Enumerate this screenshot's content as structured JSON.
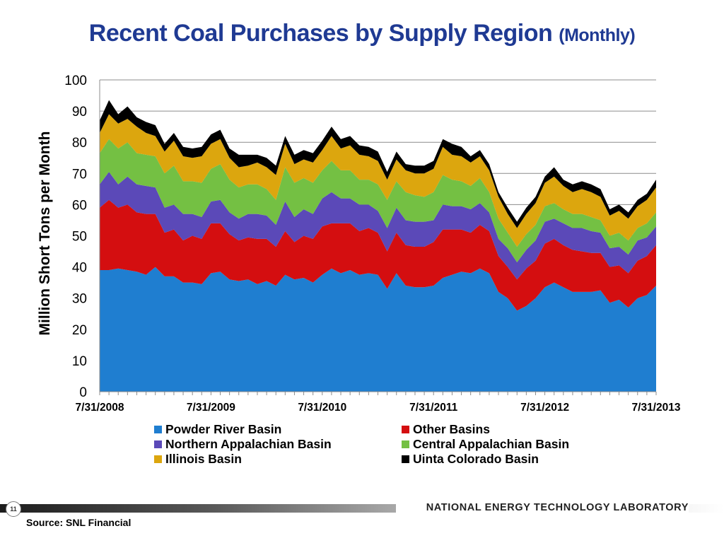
{
  "title": {
    "main": "Recent Coal Purchases by Supply Region",
    "sub": "(Monthly)"
  },
  "page_number": "11",
  "footer_org": "NATIONAL ENERGY TECHNOLOGY LABORATORY",
  "source": "Source: SNL Financial",
  "chart_data": {
    "type": "area",
    "stacked": true,
    "ylabel": "Million Short Tons per Month",
    "xlabel": "",
    "ylim": [
      0,
      100
    ],
    "yticks": [
      0,
      10,
      20,
      30,
      40,
      50,
      60,
      70,
      80,
      90,
      100
    ],
    "xticks": [
      "7/31/2008",
      "7/31/2009",
      "7/31/2010",
      "7/31/2011",
      "7/31/2012",
      "7/31/2013"
    ],
    "x_start": "7/31/2008",
    "x_end": "7/31/2013",
    "grid": "horizontal",
    "legend_position": "bottom",
    "series": [
      {
        "name": "Powder River Basin",
        "color": "#1f7ed0",
        "values": [
          39,
          39,
          39.5,
          39,
          38.5,
          37.5,
          40,
          37,
          37,
          35,
          35,
          34.5,
          38,
          38.5,
          36,
          35.5,
          36,
          34.5,
          35.5,
          34,
          37.5,
          36,
          36.5,
          35,
          37.5,
          39.5,
          38,
          39,
          37.5,
          38,
          37.5,
          33,
          38,
          34,
          33.5,
          33.5,
          34,
          36.5,
          37.5,
          38.5,
          38,
          39.5,
          38,
          32,
          30,
          26,
          27.5,
          30,
          33.5,
          35,
          33.5,
          32,
          32,
          32,
          32.5,
          28.5,
          29.5,
          27,
          30,
          31,
          34
        ]
      },
      {
        "name": "Other Basins",
        "color": "#d40e10",
        "values": [
          20,
          22.5,
          19.5,
          21,
          19,
          19.5,
          17,
          14,
          15,
          13.5,
          15,
          14.5,
          16,
          15.5,
          14.5,
          13,
          13.5,
          14.5,
          13.5,
          12.5,
          14,
          12,
          13.5,
          14,
          15.5,
          14.5,
          16,
          15,
          14,
          14.5,
          13.5,
          12,
          13,
          13,
          13,
          13,
          14,
          15.5,
          14.5,
          13.5,
          13,
          14,
          13.5,
          11.5,
          10,
          10,
          12,
          12,
          14,
          14,
          13.5,
          13.5,
          13,
          12.5,
          12,
          11.5,
          11,
          11,
          12,
          12.5,
          13
        ]
      },
      {
        "name": "Northern Appalachian Basin",
        "color": "#5b49b8",
        "values": [
          7.5,
          9,
          7.5,
          9,
          9,
          9,
          8.5,
          8,
          8,
          8.5,
          7,
          7,
          7,
          7.5,
          7,
          7,
          7.5,
          8,
          7.5,
          7,
          9.5,
          8,
          8.5,
          8,
          9,
          10,
          8,
          8,
          8.5,
          7.5,
          7,
          7.5,
          8,
          8,
          8,
          8,
          7,
          8,
          7.5,
          7.5,
          7.5,
          7,
          6,
          5.5,
          6,
          5.5,
          6,
          6.5,
          7,
          6.5,
          7,
          7,
          7.5,
          7,
          6.5,
          6,
          6,
          6,
          6.5,
          6,
          6
        ]
      },
      {
        "name": "Central Appalachian Basin",
        "color": "#74c043",
        "values": [
          10,
          10.5,
          11.5,
          11,
          10,
          10,
          10,
          11,
          12.5,
          10.5,
          10.5,
          11,
          10.5,
          11.5,
          10.5,
          10,
          9.5,
          9.5,
          8.5,
          8,
          11,
          11,
          10,
          10,
          9,
          10,
          9,
          9,
          8,
          8,
          8.5,
          9,
          8.5,
          9,
          8.5,
          8,
          9,
          9.5,
          8.5,
          8,
          7.5,
          8,
          6.5,
          6.5,
          5,
          5,
          5,
          5,
          5,
          5,
          4.5,
          4.5,
          4.5,
          4.5,
          4,
          4,
          4.5,
          4.5,
          4,
          4.5,
          4.5
        ]
      },
      {
        "name": "Illinois Basin",
        "color": "#dca60e",
        "values": [
          6.5,
          8,
          8,
          7.5,
          8.5,
          7,
          6.5,
          7,
          8,
          8,
          7.5,
          8.5,
          8,
          8,
          7,
          6.5,
          6,
          7,
          7,
          8,
          7.5,
          6,
          6,
          6.5,
          6.5,
          8,
          7,
          8,
          8,
          7.5,
          7.5,
          6.5,
          7,
          7,
          7,
          7.5,
          7.5,
          9,
          8,
          8,
          7.5,
          7,
          7,
          7,
          6,
          6,
          6.5,
          7,
          7.5,
          8.5,
          7.5,
          7,
          8,
          8,
          7.5,
          6.5,
          7,
          7,
          7,
          7.5,
          8
        ]
      },
      {
        "name": "Uinta Colorado Basin",
        "color": "#000000",
        "values": [
          4,
          4.5,
          3,
          4,
          3,
          3.5,
          3.5,
          2.5,
          2.5,
          3,
          3,
          3,
          3,
          3,
          3,
          4,
          3.5,
          2.5,
          3,
          3,
          2.5,
          3,
          3,
          3,
          3,
          3,
          3,
          3,
          3,
          3,
          3,
          2.5,
          2.5,
          2,
          2.5,
          2.5,
          2.5,
          2.5,
          3.5,
          3,
          2,
          2,
          2,
          1.5,
          2,
          2,
          2,
          2,
          2,
          3,
          2,
          2.5,
          2.5,
          2.5,
          2.5,
          2,
          2,
          2,
          2,
          2,
          2.5
        ]
      }
    ]
  }
}
